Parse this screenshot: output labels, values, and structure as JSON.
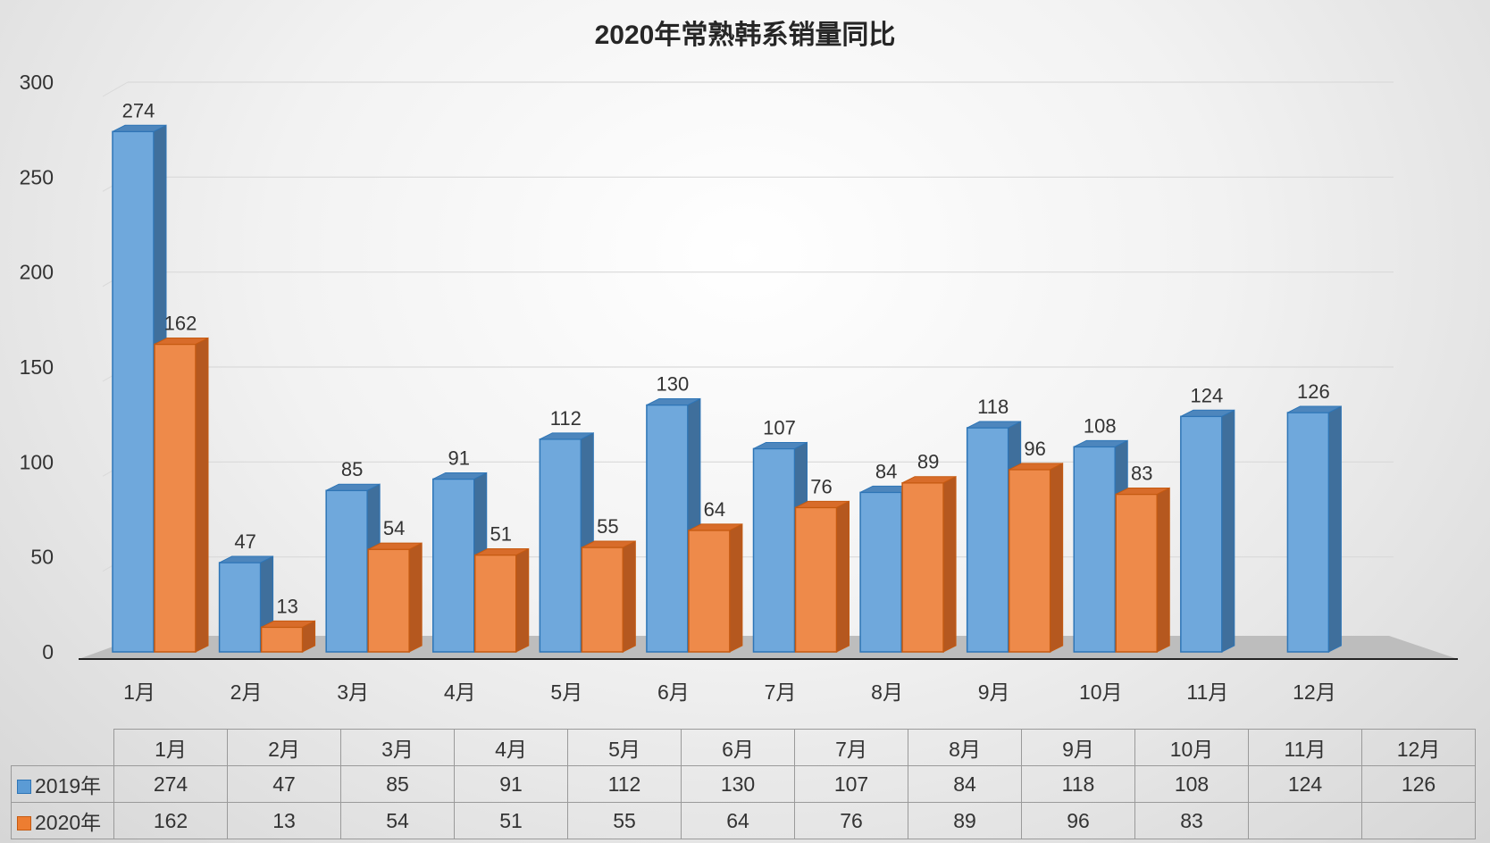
{
  "chart_data": {
    "type": "bar",
    "title": "2020年常熟韩系销量同比",
    "categories": [
      "1月",
      "2月",
      "3月",
      "4月",
      "5月",
      "6月",
      "7月",
      "8月",
      "9月",
      "10月",
      "11月",
      "12月"
    ],
    "series": [
      {
        "name": "2019年",
        "color": "#5b9bd5",
        "values": [
          274,
          47,
          85,
          91,
          112,
          130,
          107,
          84,
          118,
          108,
          124,
          126
        ]
      },
      {
        "name": "2020年",
        "color": "#ed7d31",
        "values": [
          162,
          13,
          54,
          51,
          55,
          64,
          76,
          89,
          96,
          83,
          null,
          null
        ]
      }
    ],
    "ylim": [
      0,
      300
    ],
    "yticks": [
      0,
      50,
      100,
      150,
      200,
      250,
      300
    ],
    "grid": true,
    "legend": "data-table-bottom",
    "data_table": true
  }
}
